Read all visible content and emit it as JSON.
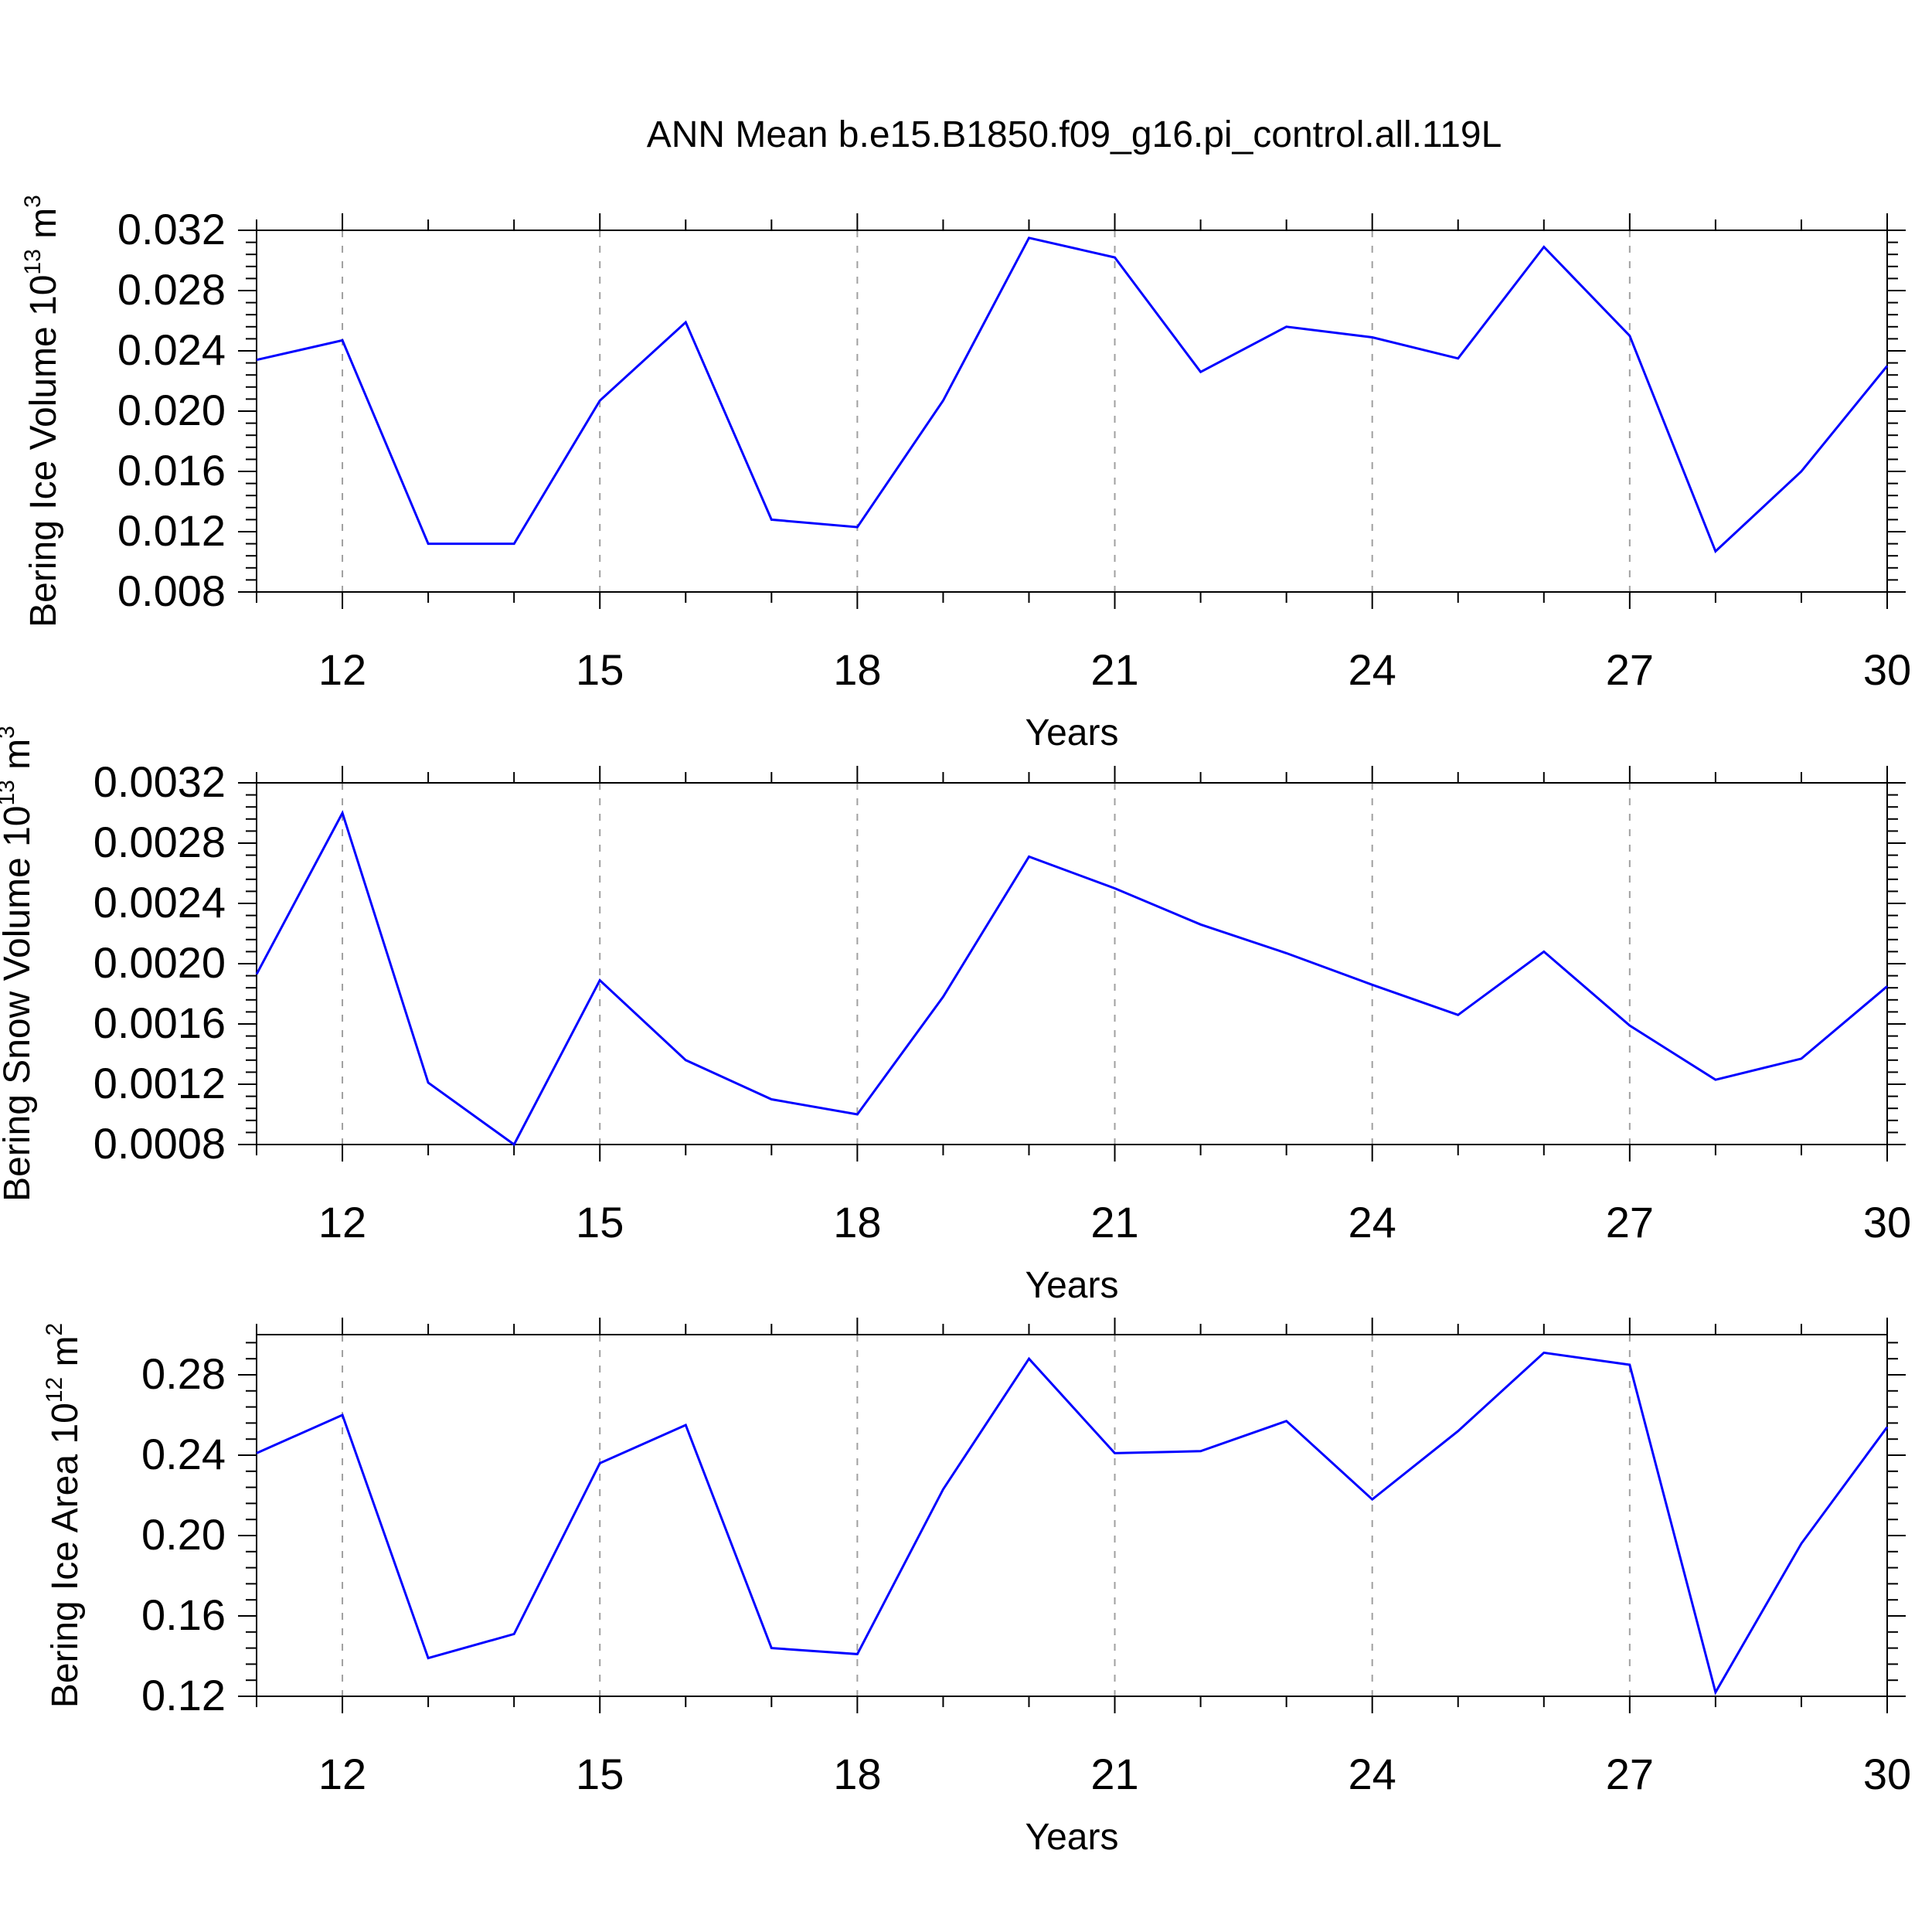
{
  "figure": {
    "title": "ANN Mean b.e15.B1850.f09_g16.pi_control.all.119L"
  },
  "colors": {
    "line": "#0000ff",
    "axis": "#000000",
    "grid": "#a0a0a0",
    "background": "#ffffff"
  },
  "chart_data": [
    {
      "type": "line",
      "title": "",
      "ylabel": "Bering Ice Volume 10",
      "ylabel_sup": "13",
      "ylabel_unit": " m",
      "ylabel_unit_sup": "3",
      "xlabel": "Years",
      "xlim": [
        11,
        30
      ],
      "ylim": [
        0.008,
        0.032
      ],
      "xticks": [
        12,
        15,
        18,
        21,
        24,
        27,
        30
      ],
      "yticks": [
        0.008,
        0.012,
        0.016,
        0.02,
        0.024,
        0.028,
        0.032
      ],
      "ytick_labels": [
        "0.008",
        "0.012",
        "0.016",
        "0.020",
        "0.024",
        "0.028",
        "0.032"
      ],
      "grid": "vertical dashed at major x ticks",
      "x": [
        11,
        12,
        13,
        14,
        15,
        16,
        17,
        18,
        19,
        20,
        21,
        22,
        23,
        24,
        25,
        26,
        27,
        28,
        29,
        30
      ],
      "series": [
        {
          "values": [
            0.0234,
            0.0247,
            0.0112,
            0.0112,
            0.0207,
            0.0259,
            0.0128,
            0.0123,
            0.0207,
            0.0315,
            0.0302,
            0.0226,
            0.0256,
            0.0249,
            0.0235,
            0.0309,
            0.025,
            0.0107,
            0.016,
            0.023
          ]
        }
      ]
    },
    {
      "type": "line",
      "title": "",
      "ylabel": "Bering Snow Volume 10",
      "ylabel_sup": "13",
      "ylabel_unit": " m",
      "ylabel_unit_sup": "3",
      "xlabel": "Years",
      "xlim": [
        11,
        30
      ],
      "ylim": [
        0.0008,
        0.0032
      ],
      "xticks": [
        12,
        15,
        18,
        21,
        24,
        27,
        30
      ],
      "yticks": [
        0.0008,
        0.0012,
        0.0016,
        0.002,
        0.0024,
        0.0028,
        0.0032
      ],
      "ytick_labels": [
        "0.0008",
        "0.0012",
        "0.0016",
        "0.0020",
        "0.0024",
        "0.0028",
        "0.0032"
      ],
      "grid": "vertical dashed at major x ticks",
      "x": [
        11,
        12,
        13,
        14,
        15,
        16,
        17,
        18,
        19,
        20,
        21,
        22,
        23,
        24,
        25,
        26,
        27,
        28,
        29,
        30
      ],
      "series": [
        {
          "values": [
            0.00193,
            0.003,
            0.00121,
            0.0008,
            0.00189,
            0.00136,
            0.0011,
            0.001,
            0.00178,
            0.00271,
            0.0025,
            0.00226,
            0.00207,
            0.00186,
            0.00166,
            0.00208,
            0.00159,
            0.00123,
            0.00137,
            0.00185
          ]
        }
      ]
    },
    {
      "type": "line",
      "title": "",
      "ylabel": "Bering Ice Area 10",
      "ylabel_sup": "12",
      "ylabel_unit": " m",
      "ylabel_unit_sup": "2",
      "xlabel": "Years",
      "xlim": [
        11,
        30
      ],
      "ylim": [
        0.12,
        0.3
      ],
      "xticks": [
        12,
        15,
        18,
        21,
        24,
        27,
        30
      ],
      "yticks": [
        0.12,
        0.16,
        0.2,
        0.24,
        0.28
      ],
      "ytick_labels": [
        "0.12",
        "0.16",
        "0.20",
        "0.24",
        "0.28"
      ],
      "grid": "vertical dashed at major x ticks",
      "x": [
        11,
        12,
        13,
        14,
        15,
        16,
        17,
        18,
        19,
        20,
        21,
        22,
        23,
        24,
        25,
        26,
        27,
        28,
        29,
        30
      ],
      "series": [
        {
          "values": [
            0.241,
            0.26,
            0.139,
            0.151,
            0.236,
            0.255,
            0.144,
            0.141,
            0.223,
            0.288,
            0.241,
            0.242,
            0.257,
            0.218,
            0.252,
            0.291,
            0.285,
            0.122,
            0.196,
            0.254
          ]
        }
      ]
    }
  ]
}
